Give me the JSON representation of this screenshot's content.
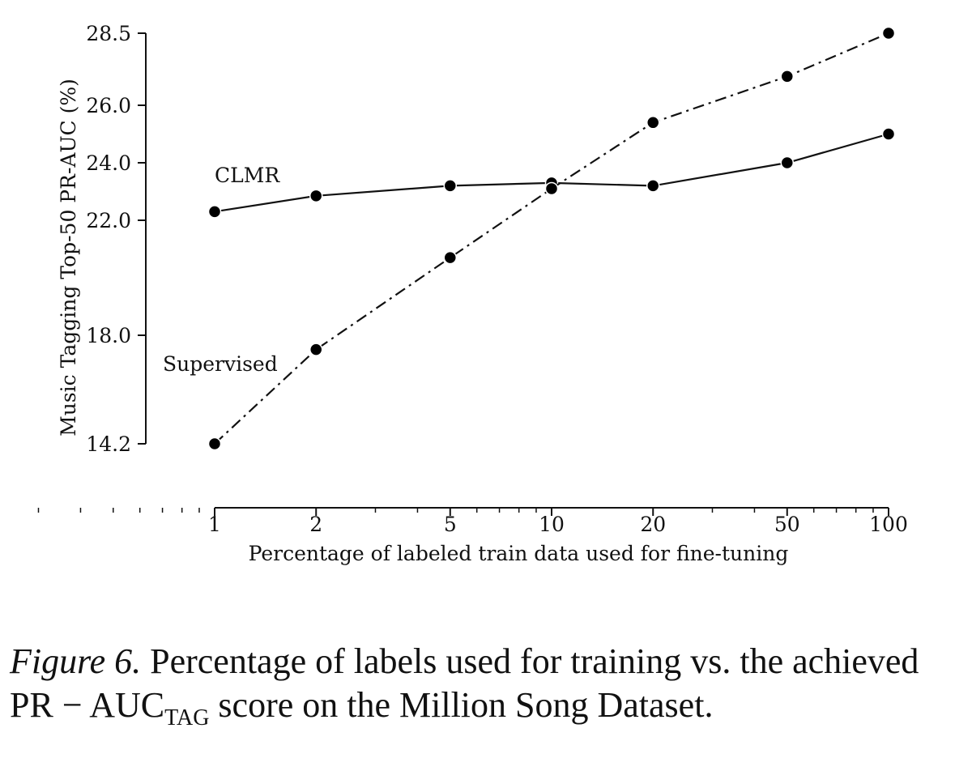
{
  "chart_data": {
    "type": "line",
    "xscale": "log",
    "xlabel": "Percentage of labeled train data used for fine-tuning",
    "ylabel": "Music Tagging Top-50 PR-AUC (%)",
    "x": [
      1,
      2,
      5,
      10,
      20,
      50,
      100
    ],
    "x_tick_labels": [
      "1",
      "2",
      "5",
      "10",
      "20",
      "50",
      "100"
    ],
    "y_ticks": [
      14.2,
      18.0,
      22.0,
      24.0,
      26.0,
      28.5
    ],
    "y_tick_labels": [
      "14.2",
      "18.0",
      "22.0",
      "24.0",
      "26.0",
      "28.5"
    ],
    "ylim": [
      14.2,
      28.5
    ],
    "grid": false,
    "series": [
      {
        "name": "CLMR",
        "line_style": "solid",
        "values": [
          22.3,
          22.85,
          23.2,
          23.3,
          23.2,
          24.0,
          25.0
        ]
      },
      {
        "name": "Supervised",
        "line_style": "dash-dot",
        "values": [
          14.2,
          17.5,
          20.7,
          23.1,
          25.4,
          27.0,
          28.5
        ]
      }
    ]
  },
  "caption": {
    "label": "Figure 6.",
    "text": "Percentage of labels used for training vs. the achieved",
    "formula_main": "PR − AUC",
    "formula_sub": "TAG",
    "text2": "score on the Million Song Dataset."
  }
}
